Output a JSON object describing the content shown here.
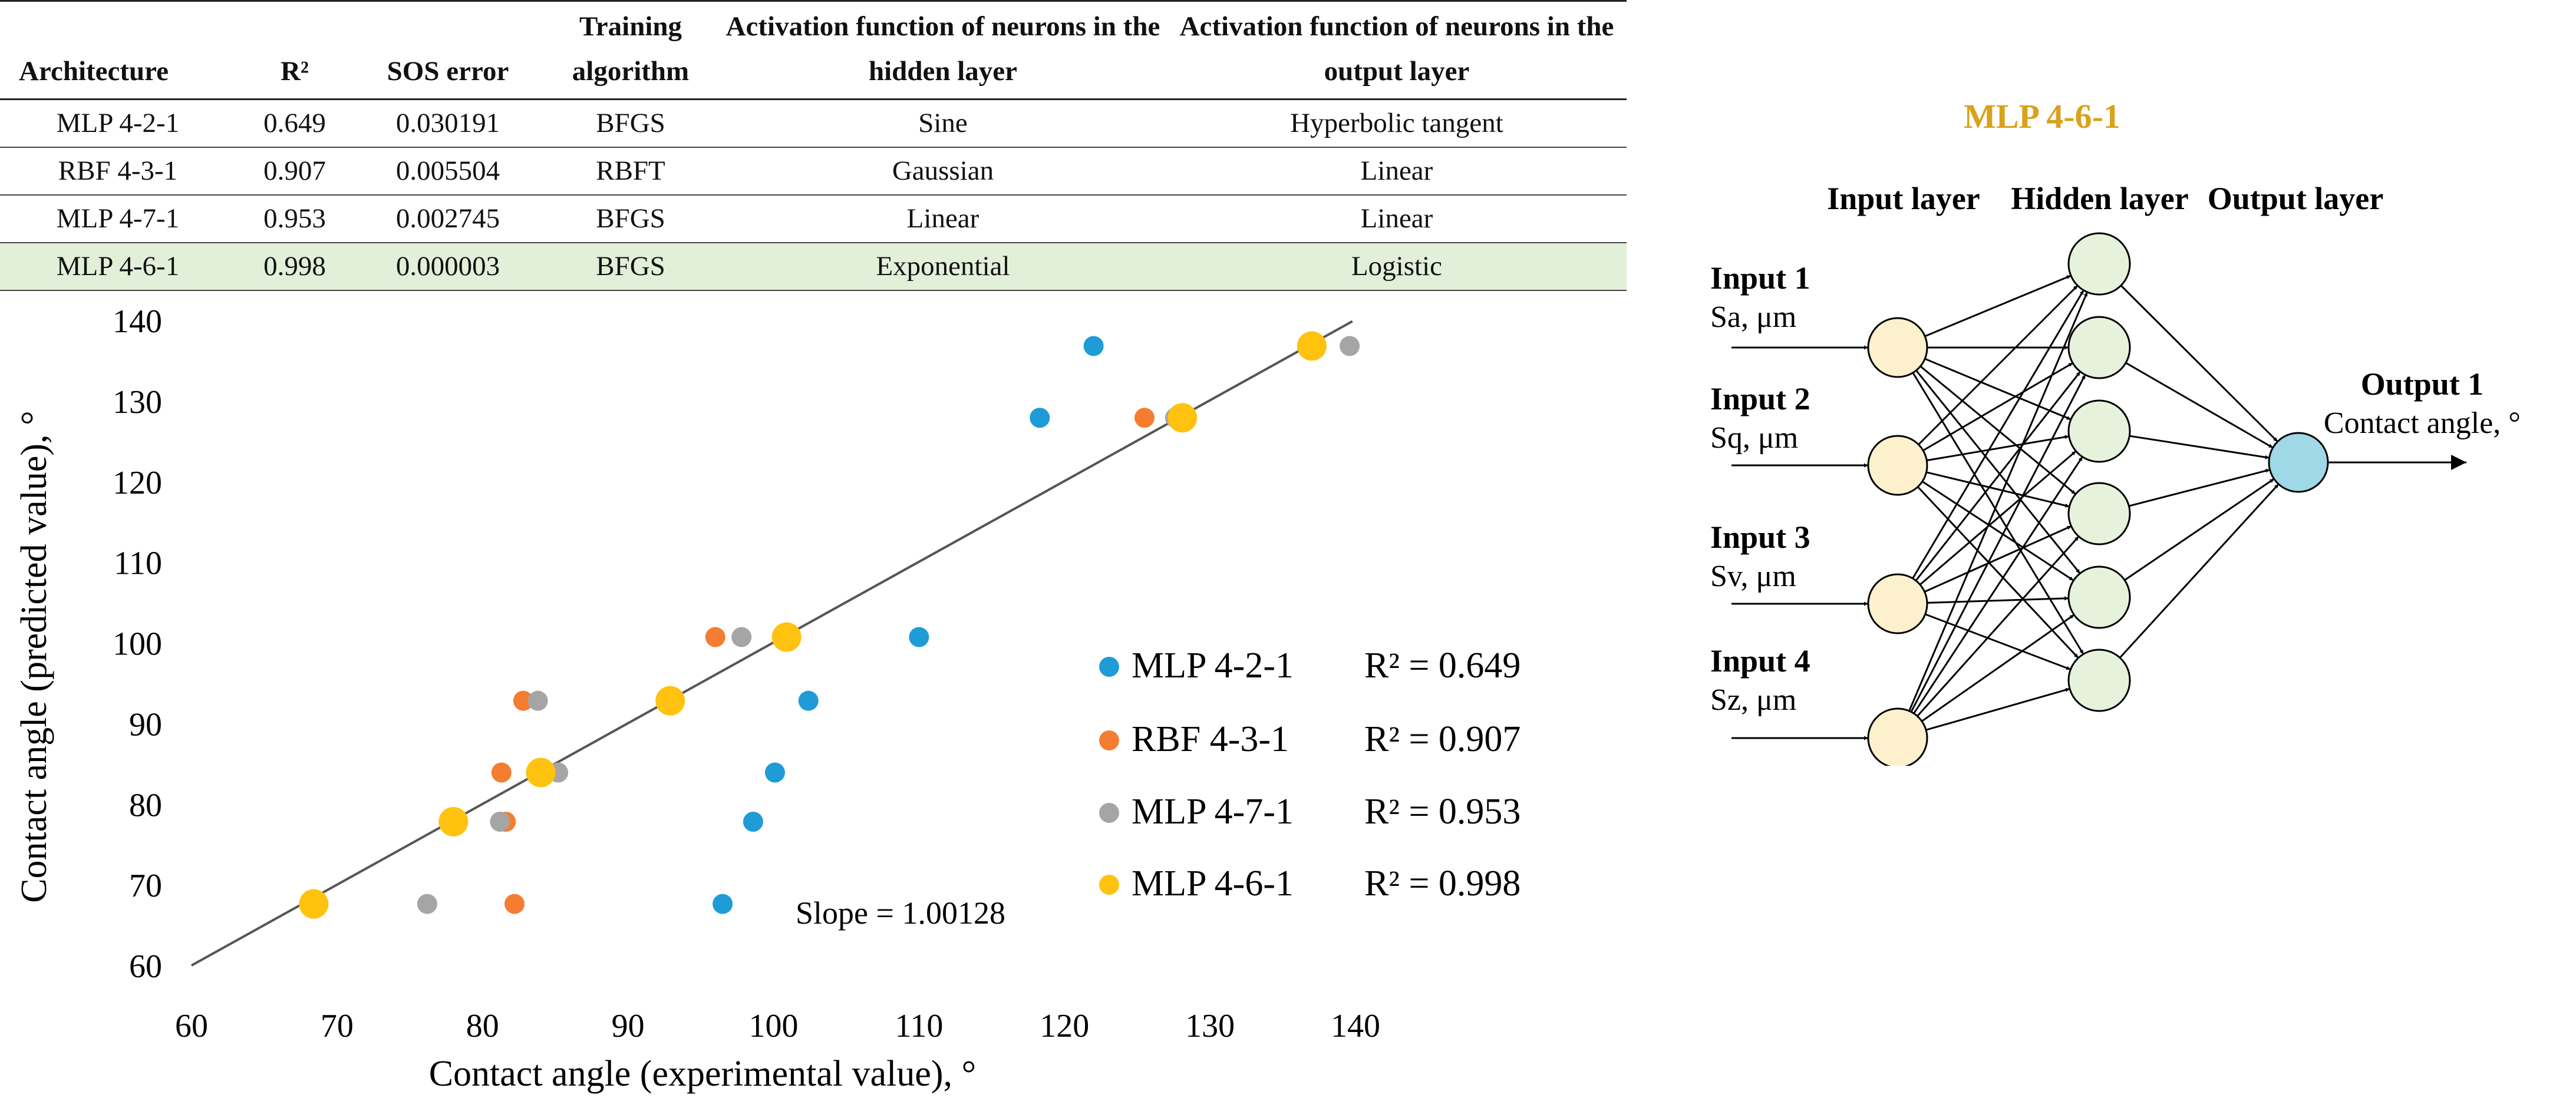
{
  "table": {
    "headers": [
      "Architecture",
      "R²",
      "SOS error",
      "Training algorithm",
      "Activation function of neurons in the hidden layer",
      "Activation function of neurons in the output layer"
    ],
    "rows": [
      [
        "MLP 4-2-1",
        "0.649",
        "0.030191",
        "BFGS",
        "Sine",
        "Hyperbolic tangent"
      ],
      [
        "RBF 4-3-1",
        "0.907",
        "0.005504",
        "RBFT",
        "Gaussian",
        "Linear"
      ],
      [
        "MLP 4-7-1",
        "0.953",
        "0.002745",
        "BFGS",
        "Linear",
        "Linear"
      ],
      [
        "MLP 4-6-1",
        "0.998",
        "0.000003",
        "BFGS",
        "Exponential",
        "Logistic"
      ]
    ],
    "highlight_color": "#e2f0d9"
  },
  "chart_data": {
    "type": "scatter",
    "title": "",
    "xlabel": "Contact angle (experimental value), °",
    "ylabel": "Contact angle (predicted value), °",
    "xlim": [
      60,
      140
    ],
    "ylim": [
      60,
      140
    ],
    "xticks": [
      60,
      70,
      80,
      90,
      100,
      110,
      120,
      130,
      140
    ],
    "yticks": [
      60,
      70,
      80,
      90,
      100,
      110,
      120,
      130,
      140
    ],
    "grid": false,
    "legend_position": "lower-right",
    "series": [
      {
        "name": "MLP 4-2-1",
        "r2_label": "R² = 0.649",
        "color": "#1f9bd7",
        "x": [
          96.5,
          98.6,
          100.1,
          102.4,
          110.0,
          118.3,
          122.0
        ],
        "y": [
          67.7,
          77.9,
          84.0,
          92.9,
          100.8,
          128.0,
          136.9
        ]
      },
      {
        "name": "RBF 4-3-1",
        "r2_label": "R² = 0.907",
        "color": "#f47d32",
        "x": [
          82.2,
          81.6,
          81.3,
          82.8,
          96.0,
          125.5,
          137.2
        ],
        "y": [
          67.7,
          77.9,
          84.0,
          92.9,
          100.8,
          128.0,
          136.9
        ]
      },
      {
        "name": "MLP 4-7-1",
        "r2_label": "R² = 0.953",
        "color": "#a5a5a5",
        "x": [
          76.2,
          81.2,
          85.2,
          83.8,
          97.8,
          127.6,
          139.6
        ],
        "y": [
          67.7,
          77.9,
          84.0,
          92.9,
          100.8,
          128.0,
          136.9
        ]
      },
      {
        "name": "MLP 4-6-1",
        "r2_label": "R² = 0.998",
        "color": "#ffc20e",
        "x": [
          68.4,
          78.0,
          84.0,
          92.9,
          100.9,
          128.1,
          137.0
        ],
        "y": [
          67.7,
          77.9,
          84.0,
          92.9,
          100.8,
          128.0,
          136.9
        ]
      }
    ],
    "trendline": {
      "slope": 1.00128,
      "label": "Slope = 1.00128",
      "color": "#555555"
    }
  },
  "network": {
    "title": "MLP 4-6-1",
    "title_color": "#d9a21b",
    "input_layer_label": "Input layer",
    "hidden_layer_label": "Hidden layer",
    "output_layer_label": "Output layer",
    "inputs": [
      {
        "name": "Input 1",
        "unit": "Sa, μm"
      },
      {
        "name": "Input 2",
        "unit": "Sq, μm"
      },
      {
        "name": "Input 3",
        "unit": "Sv, μm"
      },
      {
        "name": "Input 4",
        "unit": "Sz, μm"
      }
    ],
    "hidden_count": 6,
    "output": {
      "name": "Output 1",
      "unit": "Contact angle, °"
    },
    "colors": {
      "input": "#fdf0cd",
      "hidden": "#e6f2dc",
      "output": "#9fd8e6"
    }
  }
}
